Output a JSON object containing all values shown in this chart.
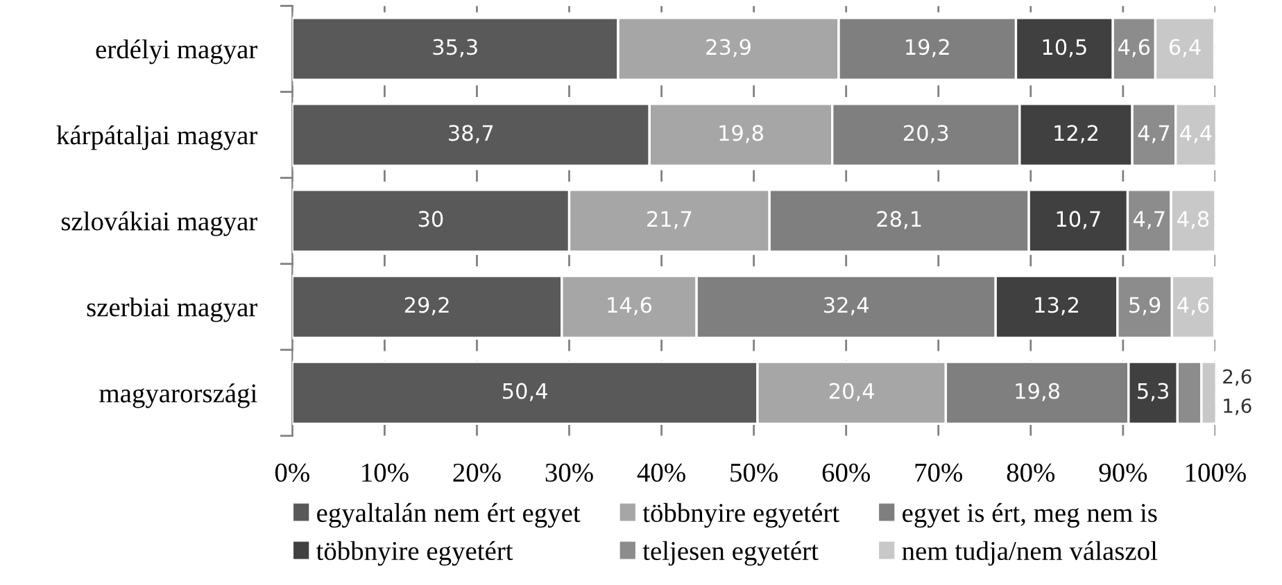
{
  "chart_data": {
    "type": "bar",
    "orientation": "horizontal",
    "stacked": true,
    "categories": [
      "erdélyi magyar",
      "kárpátaljai magyar",
      "szlovákiai magyar",
      "szerbiai magyar",
      "magyarországi"
    ],
    "series": [
      {
        "name": "egyaltalán nem ért egyet",
        "color": "#595959",
        "values": [
          35.3,
          38.7,
          30,
          29.2,
          50.4
        ],
        "value_labels": [
          "35,3",
          "38,7",
          "30",
          "29,2",
          "50,4"
        ]
      },
      {
        "name": "többnyire egyetért",
        "color": "#a6a6a6",
        "values": [
          23.9,
          19.8,
          21.7,
          14.6,
          20.4
        ],
        "value_labels": [
          "23,9",
          "19,8",
          "21,7",
          "14,6",
          "20,4"
        ]
      },
      {
        "name": "egyet is ért, meg nem is",
        "color": "#7f7f7f",
        "values": [
          19.2,
          20.3,
          28.1,
          32.4,
          19.8
        ],
        "value_labels": [
          "19,2",
          "20,3",
          "28,1",
          "32,4",
          "19,8"
        ]
      },
      {
        "name": "többnyire egyetért",
        "color": "#404040",
        "values": [
          10.5,
          12.2,
          10.7,
          13.2,
          5.3
        ],
        "value_labels": [
          "10,5",
          "12,2",
          "10,7",
          "13,2",
          "5,3"
        ]
      },
      {
        "name": "teljesen egyetért",
        "color": "#8c8c8c",
        "values": [
          4.6,
          4.7,
          4.7,
          5.9,
          2.6
        ],
        "value_labels": [
          "4,6",
          "4,7",
          "4,7",
          "5,9",
          "2,6"
        ]
      },
      {
        "name": "nem tudja/nem válaszol",
        "color": "#c8c8c8",
        "values": [
          6.4,
          4.4,
          4.8,
          4.6,
          1.6
        ],
        "value_labels": [
          "6,4",
          "4,4",
          "4,8",
          "4,6",
          "1,6"
        ]
      }
    ],
    "xlim": [
      0,
      100
    ],
    "xticks": [
      {
        "value": 0,
        "label": "0%"
      },
      {
        "value": 10,
        "label": "10%"
      },
      {
        "value": 20,
        "label": "20%"
      },
      {
        "value": 30,
        "label": "30%"
      },
      {
        "value": 40,
        "label": "40%"
      },
      {
        "value": 50,
        "label": "50%"
      },
      {
        "value": 60,
        "label": "60%"
      },
      {
        "value": 70,
        "label": "70%"
      },
      {
        "value": 80,
        "label": "80%"
      },
      {
        "value": 90,
        "label": "90%"
      },
      {
        "value": 100,
        "label": "100%"
      }
    ],
    "grid": "x",
    "legend": "bottom"
  }
}
